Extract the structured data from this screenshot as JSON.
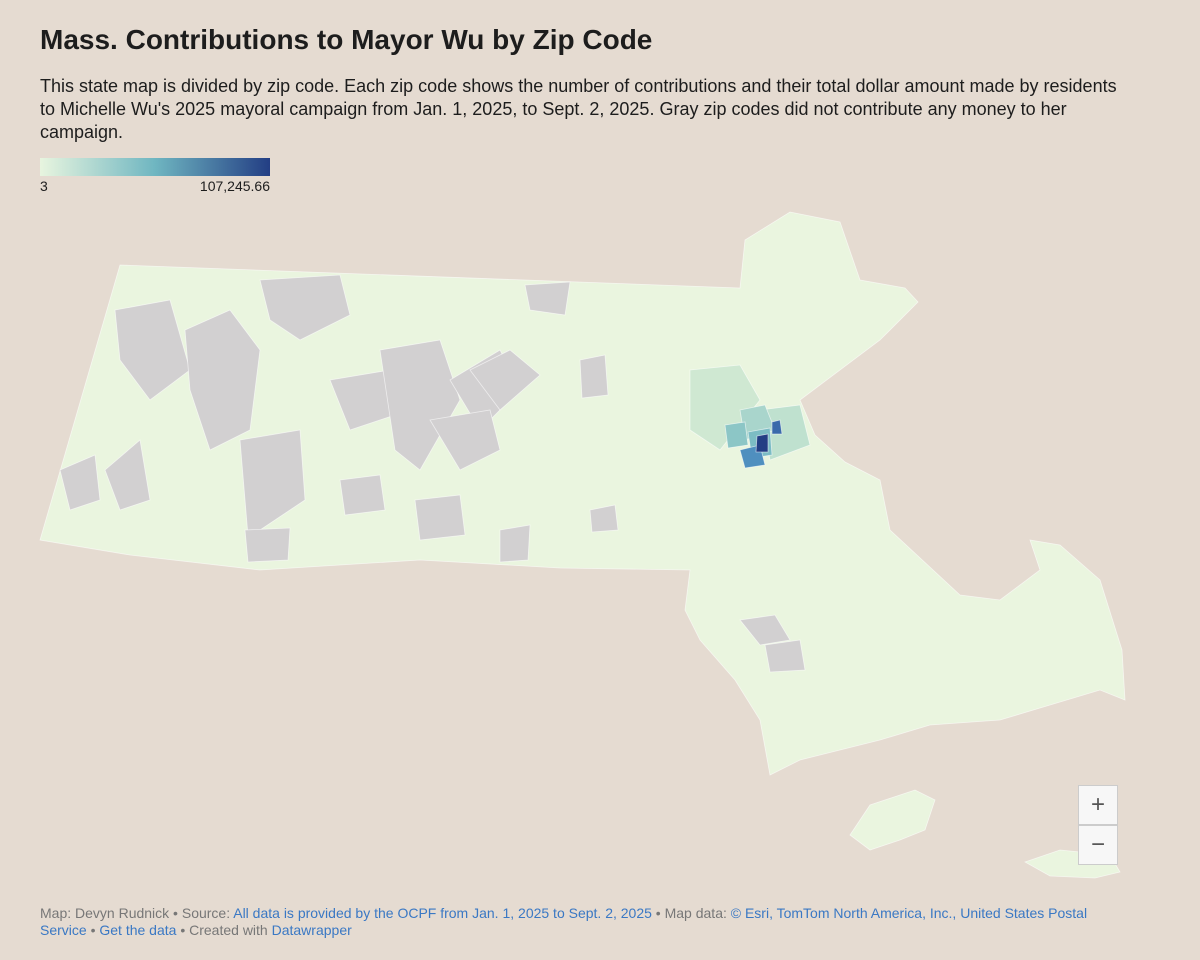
{
  "header": {
    "title": "Mass. Contributions to Mayor Wu by Zip Code",
    "description": "This state map is divided by zip code. Each zip code shows the number of contributions and their total dollar amount made by residents to Michelle Wu's 2025 mayoral campaign from Jan. 1, 2025, to Sept. 2, 2025. Gray zip codes did not contribute any money to her campaign."
  },
  "legend": {
    "min": 3,
    "max": {
      "value": 107245.66,
      "label": "107,245.66"
    },
    "colors": [
      "#e8f5df",
      "#6fb6c1",
      "#233e84"
    ]
  },
  "zoom": {
    "in": "+",
    "out": "−"
  },
  "footer": {
    "byline": "Map: Devyn Rudnick",
    "source_label": "Source:",
    "source_link": "All data is provided by the OCPF from Jan. 1, 2025 to Sept. 2, 2025",
    "map_data_label": "Map data:",
    "map_data_link": "© Esri, TomTom North America, Inc., United States Postal Service",
    "get_data": "Get the data",
    "created_label": "Created with",
    "created_link": "Datawrapper"
  }
}
